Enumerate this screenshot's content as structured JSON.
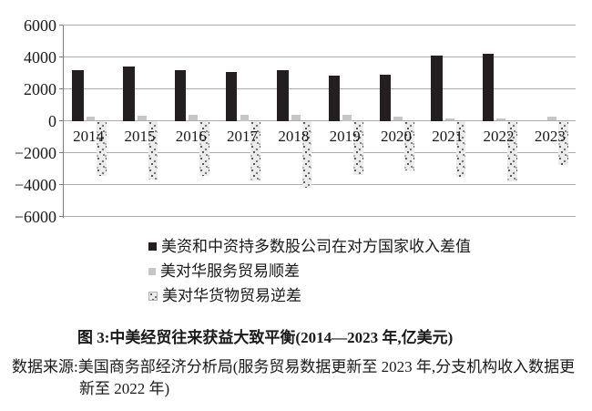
{
  "chart_data": {
    "type": "bar",
    "title": "图 3:中美经贸往来获益大致平衡(2014—2023 年,亿美元)",
    "categories": [
      "2014",
      "2015",
      "2016",
      "2017",
      "2018",
      "2019",
      "2020",
      "2021",
      "2022",
      "2023"
    ],
    "series": [
      {
        "name": "美资和中资持多数股公司在对方国家收入差值",
        "style": "solid-black",
        "color": "#231f20",
        "values": [
          3200,
          3400,
          3150,
          3050,
          3150,
          2850,
          2900,
          4100,
          4200,
          null
        ]
      },
      {
        "name": "美对华服务贸易顺差",
        "style": "solid-gray",
        "color": "#c6c6c6",
        "values": [
          280,
          340,
          380,
          400,
          390,
          350,
          240,
          160,
          130,
          270
        ]
      },
      {
        "name": "美对华货物贸易逆差",
        "style": "speckled",
        "color": "#ececec",
        "values": [
          -3450,
          -3670,
          -3470,
          -3760,
          -4180,
          -3420,
          -3100,
          -3530,
          -3820,
          -2790
        ]
      }
    ],
    "ylim": [
      -6000,
      6000
    ],
    "yticks": [
      6000,
      4000,
      2000,
      0,
      -2000,
      -4000,
      -6000
    ],
    "ytick_labels": [
      "6000",
      "4000",
      "2000",
      "0",
      "−2000",
      "−4000",
      "−6000"
    ],
    "grid": true,
    "legend_position": "below-left"
  },
  "source": {
    "line1": "数据来源:美国商务部经济分析局(服务贸易数据更新至 2023 年,分支机构收入数据更",
    "line2": "新至 2022 年)"
  }
}
